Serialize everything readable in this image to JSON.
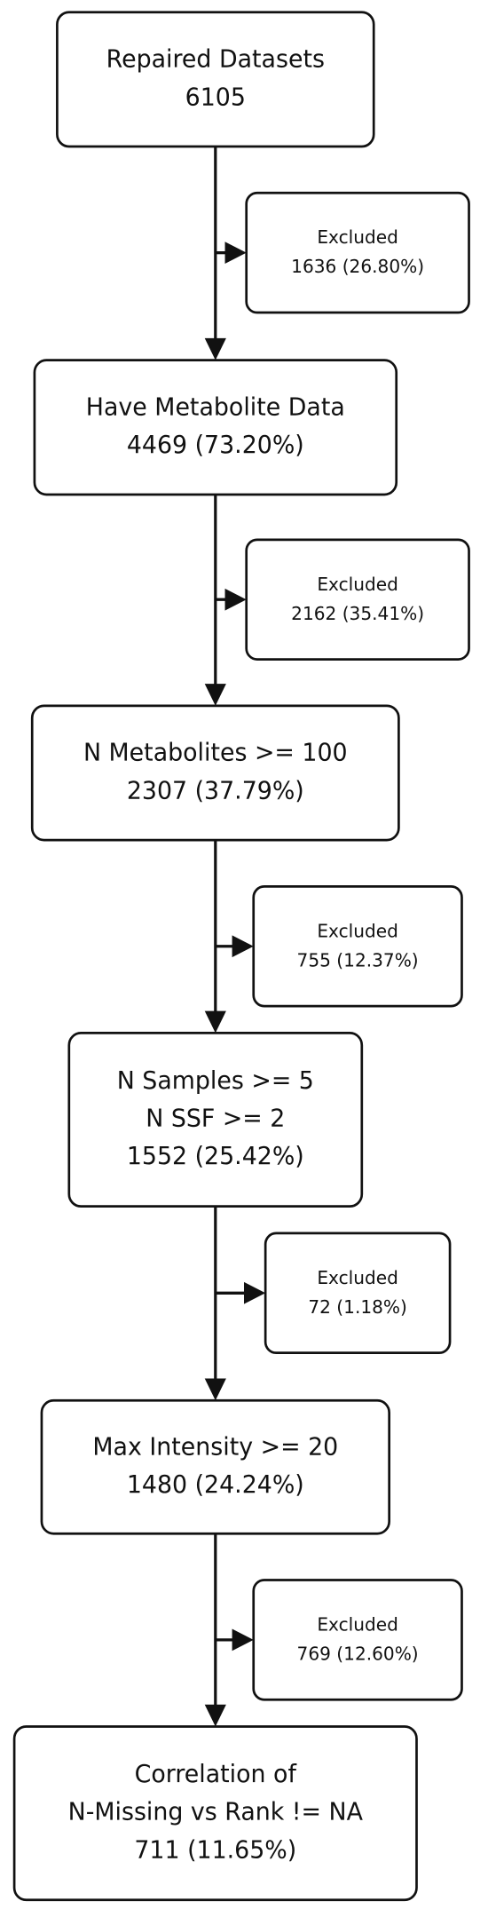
{
  "nodes": [
    {
      "lines": [
        "Repaired Datasets",
        "6105"
      ]
    },
    {
      "lines": [
        "Have Metabolite Data",
        "4469 (73.20%)"
      ]
    },
    {
      "lines": [
        "N Metabolites >= 100",
        "2307 (37.79%)"
      ]
    },
    {
      "lines": [
        "N Samples >= 5",
        "N SSF >= 2",
        "1552 (25.42%)"
      ]
    },
    {
      "lines": [
        "Max Intensity >= 20",
        "1480 (24.24%)"
      ]
    },
    {
      "lines": [
        "Correlation of",
        "N-Missing vs Rank != NA",
        "711 (11.65%)"
      ]
    }
  ],
  "excluded": [
    {
      "lines": [
        "Excluded",
        "1636 (26.80%)"
      ]
    },
    {
      "lines": [
        "Excluded",
        "2162 (35.41%)"
      ]
    },
    {
      "lines": [
        "Excluded",
        "755 (12.37%)"
      ]
    },
    {
      "lines": [
        "Excluded",
        "72 (1.18%)"
      ]
    },
    {
      "lines": [
        "Excluded",
        "769 (12.60%)"
      ]
    }
  ]
}
